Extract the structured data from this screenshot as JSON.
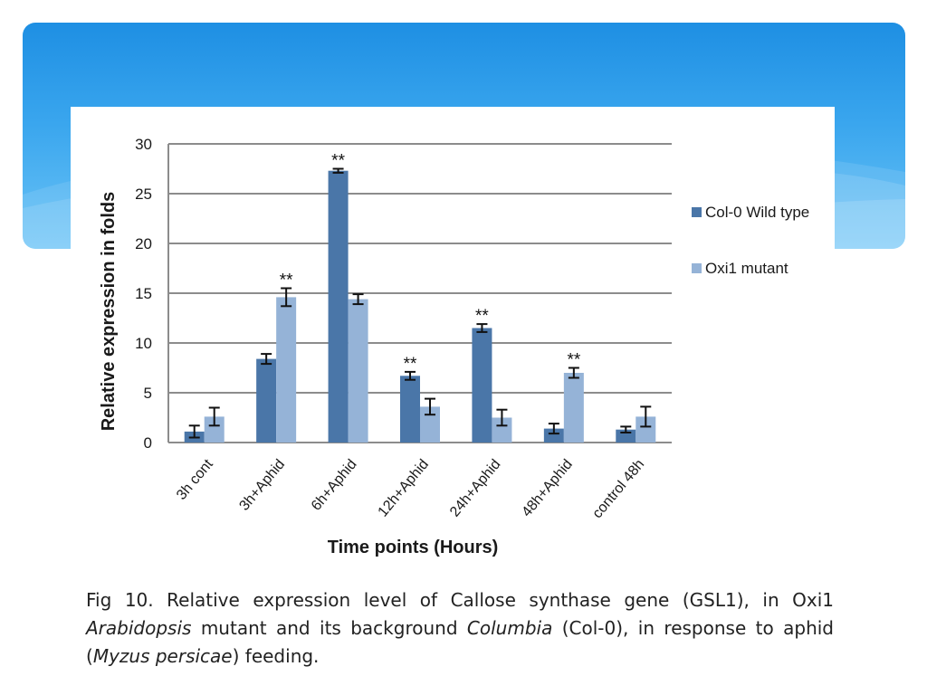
{
  "colors": {
    "banner_top": "#1e8fe3",
    "banner_bottom": "#6cc4f6",
    "wild_type": "#4a76a8",
    "mutant": "#95b3d7",
    "grid": "#8c8c8c",
    "axis_text": "#1a1a1a"
  },
  "chart_data": {
    "type": "bar",
    "xlabel": "Time points (Hours)",
    "ylabel": "Relative expression in folds",
    "ylim": [
      0,
      30
    ],
    "yticks": [
      0,
      5,
      10,
      15,
      20,
      25,
      30
    ],
    "grid": true,
    "legend_position": "right",
    "categories": [
      "3h  cont",
      "3h+Aphid",
      "6h+Aphid",
      "12h+Aphid",
      "24h+Aphid",
      "48h+Aphid",
      "control 48h"
    ],
    "series": [
      {
        "name": "Col-0 Wild type",
        "color": "#4a76a8",
        "values": [
          1.1,
          8.4,
          27.3,
          6.7,
          11.5,
          1.4,
          1.3
        ],
        "errors": [
          0.6,
          0.5,
          0.2,
          0.4,
          0.4,
          0.5,
          0.3
        ],
        "significance": [
          "",
          "",
          "**",
          "**",
          "**",
          "",
          ""
        ]
      },
      {
        "name": "Oxi1 mutant",
        "color": "#95b3d7",
        "values": [
          2.6,
          14.6,
          14.4,
          3.6,
          2.5,
          7.0,
          2.6
        ],
        "errors": [
          0.9,
          0.9,
          0.5,
          0.8,
          0.8,
          0.5,
          1.0
        ],
        "significance": [
          "",
          "**",
          "",
          "",
          "",
          "**",
          ""
        ]
      }
    ]
  },
  "caption": {
    "part1": "Fig 10. Relative expression level of Callose synthase gene (GSL1), in Oxi1 ",
    "italic1": "Arabidopsis",
    "part2": " mutant and its background ",
    "italic2": "Columbia",
    "part3": " (Col-0), in response to aphid (",
    "italic3": "Myzus persicae",
    "part4": ") feeding."
  }
}
